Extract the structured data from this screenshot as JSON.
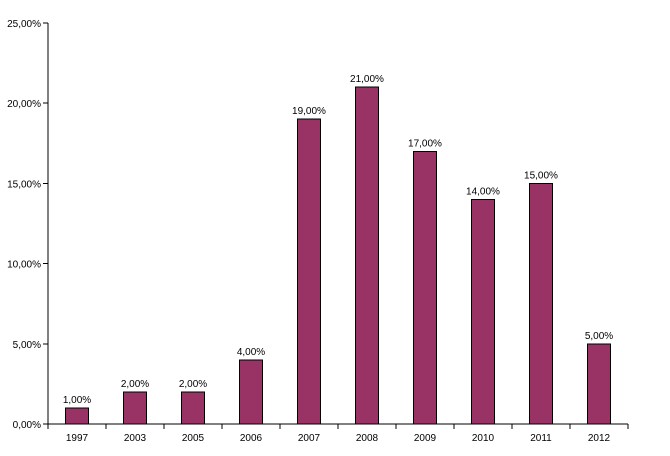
{
  "chart_data": {
    "type": "bar",
    "categories": [
      "1997",
      "2003",
      "2005",
      "2006",
      "2007",
      "2008",
      "2009",
      "2010",
      "2011",
      "2012"
    ],
    "values": [
      1,
      2,
      2,
      4,
      19,
      21,
      17,
      14,
      15,
      5
    ],
    "data_labels": [
      "1,00%",
      "2,00%",
      "2,00%",
      "4,00%",
      "19,00%",
      "21,00%",
      "17,00%",
      "14,00%",
      "15,00%",
      "5,00%"
    ],
    "y_ticks": [
      0,
      5,
      10,
      15,
      20,
      25
    ],
    "y_tick_labels": [
      "0,00%",
      "5,00%",
      "10,00%",
      "15,00%",
      "20,00%",
      "25,00%"
    ],
    "ylim": [
      0,
      25
    ],
    "title": "",
    "xlabel": "",
    "ylabel": "",
    "grid": false,
    "legend": "none",
    "bar_color": "#993366"
  }
}
